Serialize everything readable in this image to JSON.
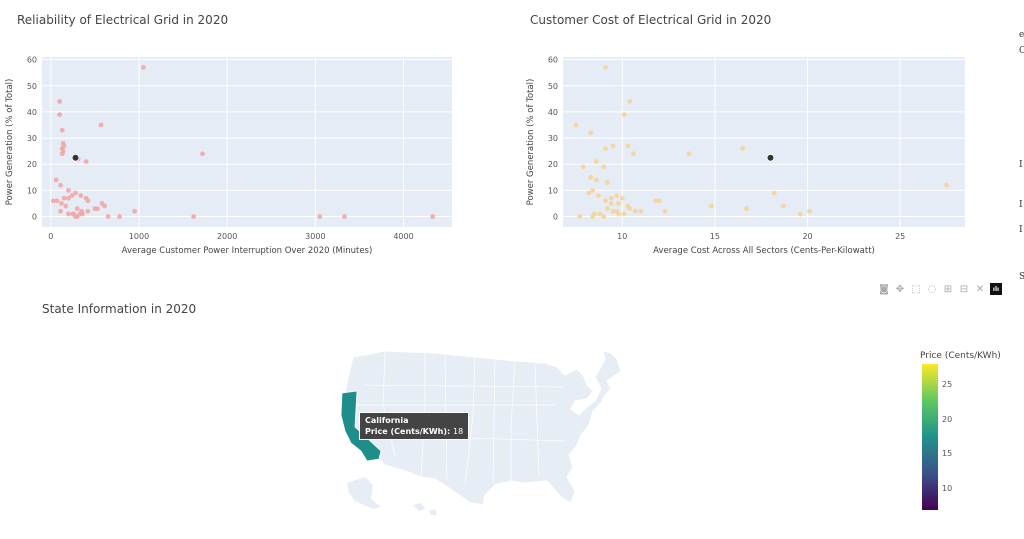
{
  "chart_data": [
    {
      "type": "scatter",
      "title": "Reliability of Electrical Grid in 2020",
      "xlabel": "Average Customer Power Interruption Over 2020 (Minutes)",
      "ylabel": "Power Generation (% of Total)",
      "xlim": [
        -100,
        4550
      ],
      "ylim": [
        -4,
        61
      ],
      "xticks": [
        0,
        1000,
        2000,
        3000,
        4000
      ],
      "yticks": [
        0,
        10,
        20,
        30,
        40,
        50,
        60
      ],
      "point_color": "#f0a7a7",
      "highlight_color": "#333333",
      "points": [
        [
          1050,
          57
        ],
        [
          100,
          44
        ],
        [
          100,
          39
        ],
        [
          130,
          33
        ],
        [
          140,
          28
        ],
        [
          150,
          27
        ],
        [
          130,
          26
        ],
        [
          140,
          25
        ],
        [
          130,
          24
        ],
        [
          570,
          35
        ],
        [
          1720,
          24
        ],
        [
          280,
          23
        ],
        [
          310,
          22
        ],
        [
          400,
          21
        ],
        [
          60,
          14
        ],
        [
          110,
          12
        ],
        [
          200,
          10
        ],
        [
          280,
          9
        ],
        [
          340,
          8
        ],
        [
          240,
          8
        ],
        [
          200,
          7
        ],
        [
          150,
          7
        ],
        [
          400,
          7
        ],
        [
          420,
          6
        ],
        [
          30,
          6
        ],
        [
          70,
          6
        ],
        [
          120,
          5
        ],
        [
          580,
          5
        ],
        [
          610,
          4
        ],
        [
          170,
          4
        ],
        [
          500,
          3
        ],
        [
          530,
          3
        ],
        [
          300,
          3
        ],
        [
          350,
          2
        ],
        [
          420,
          2
        ],
        [
          950,
          2
        ],
        [
          110,
          2
        ],
        [
          200,
          1
        ],
        [
          250,
          1
        ],
        [
          260,
          1
        ],
        [
          330,
          1
        ],
        [
          360,
          1
        ],
        [
          280,
          0
        ],
        [
          300,
          0
        ],
        [
          650,
          0
        ],
        [
          780,
          0
        ],
        [
          1620,
          0
        ],
        [
          3050,
          0
        ],
        [
          3330,
          0
        ],
        [
          4330,
          0
        ]
      ],
      "highlight": [
        280,
        22.5
      ]
    },
    {
      "type": "scatter",
      "title": "Customer Cost of Electrical Grid in 2020",
      "xlabel": "Average Cost Across All Sectors (Cents-Per-Kilowatt)",
      "ylabel": "Power Generation (% of Total)",
      "xlim": [
        6.8,
        28.5
      ],
      "ylim": [
        -4,
        61
      ],
      "xticks": [
        10,
        15,
        20,
        25
      ],
      "yticks": [
        0,
        10,
        20,
        30,
        40,
        50,
        60
      ],
      "point_color": "#f5d39a",
      "highlight_color": "#333333",
      "points": [
        [
          9.1,
          57
        ],
        [
          10.4,
          44
        ],
        [
          10.1,
          39
        ],
        [
          7.5,
          35
        ],
        [
          8.3,
          32
        ],
        [
          9.5,
          27
        ],
        [
          9.1,
          26
        ],
        [
          10.6,
          24
        ],
        [
          13.6,
          24
        ],
        [
          16.5,
          26
        ],
        [
          10.3,
          27
        ],
        [
          8.6,
          21
        ],
        [
          7.9,
          19
        ],
        [
          9.0,
          19
        ],
        [
          8.3,
          15
        ],
        [
          8.6,
          14
        ],
        [
          9.2,
          13
        ],
        [
          8.4,
          10
        ],
        [
          8.2,
          9
        ],
        [
          8.7,
          8
        ],
        [
          9.4,
          7
        ],
        [
          9.7,
          8
        ],
        [
          10.0,
          7
        ],
        [
          9.1,
          6
        ],
        [
          11.8,
          6
        ],
        [
          12.0,
          6
        ],
        [
          9.4,
          5
        ],
        [
          9.8,
          5
        ],
        [
          10.3,
          4
        ],
        [
          10.4,
          3
        ],
        [
          10.7,
          2
        ],
        [
          11.0,
          2
        ],
        [
          9.2,
          3
        ],
        [
          9.5,
          2
        ],
        [
          9.7,
          2
        ],
        [
          9.8,
          1
        ],
        [
          10.1,
          1
        ],
        [
          8.8,
          1
        ],
        [
          8.5,
          1
        ],
        [
          7.7,
          0
        ],
        [
          8.4,
          0
        ],
        [
          9.0,
          0
        ],
        [
          12.3,
          2
        ],
        [
          14.8,
          4
        ],
        [
          16.7,
          3
        ],
        [
          18.2,
          9
        ],
        [
          18.7,
          4
        ],
        [
          19.6,
          1
        ],
        [
          20.1,
          2
        ],
        [
          27.5,
          12
        ]
      ],
      "highlight": [
        18.0,
        22.5
      ]
    },
    {
      "type": "choropleth",
      "title": "State Information in 2020",
      "colorbar_title": "Price (Cents/KWh)",
      "colorbar_ticks": [
        10,
        15,
        20,
        25
      ],
      "colorbar_range": [
        7,
        28
      ],
      "tooltip_state": "California",
      "tooltip_label": "Price (Cents/KWh): ",
      "tooltip_value": "18",
      "highlight_color": "#1f8d8a",
      "map_color": "#e7edf4"
    }
  ],
  "modebar": {
    "icons": [
      "camera-icon",
      "pan-icon",
      "box-select-icon",
      "lasso-icon",
      "zoom-in-icon",
      "zoom-out-icon",
      "autoscale-icon",
      "plotly-logo-icon"
    ],
    "glyphs": [
      "◙",
      "✥",
      "⬚",
      "◌",
      "⊞",
      "⊟",
      "✕",
      "ılı"
    ]
  },
  "edge_text": [
    "e",
    "C",
    "I",
    "I",
    "I",
    "S"
  ]
}
